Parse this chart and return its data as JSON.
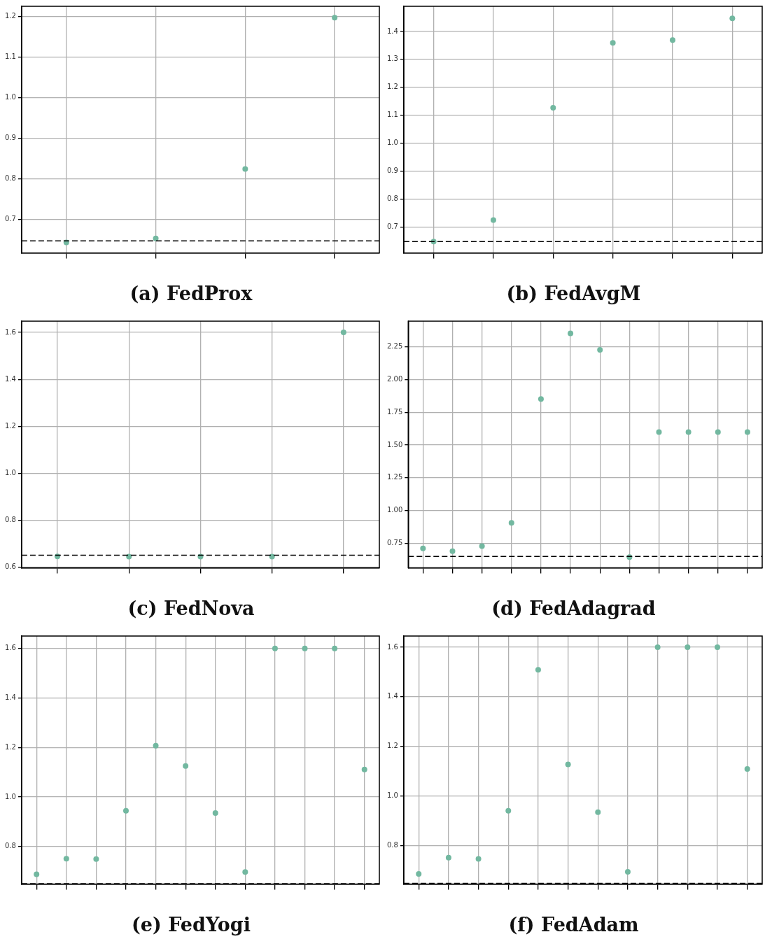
{
  "chart_data": [
    {
      "type": "scatter",
      "title": "(a) FedProx",
      "categories": [
        null,
        null,
        null,
        null
      ],
      "values": [
        0.643,
        0.653,
        0.824,
        1.197
      ],
      "color": "#72b8a0",
      "marker": "circle",
      "ylim": [
        0.617,
        1.225
      ],
      "yticks": [
        {
          "value": 0.7,
          "label": "0.7"
        },
        {
          "value": 0.8,
          "label": "0.8"
        },
        {
          "value": 0.9,
          "label": "0.9"
        },
        {
          "value": 1.0,
          "label": "1.0"
        },
        {
          "value": 1.1,
          "label": "1.1"
        },
        {
          "value": 1.2,
          "label": "1.2"
        }
      ],
      "grid": true,
      "tick_labels": "y",
      "ref_lines": [
        {
          "axis": "y",
          "value": 0.647,
          "color": "#000000",
          "line_style": "dashed"
        }
      ]
    },
    {
      "type": "scatter",
      "title": "(b) FedAvgM",
      "categories": [
        null,
        null,
        null,
        null,
        null,
        null
      ],
      "values": [
        0.648,
        0.725,
        1.127,
        1.359,
        1.369,
        1.447
      ],
      "color": "#72b8a0",
      "marker": "circle",
      "ylim": [
        0.607,
        1.49
      ],
      "yticks": [
        {
          "value": 0.7,
          "label": "0.7"
        },
        {
          "value": 0.8,
          "label": "0.8"
        },
        {
          "value": 0.9,
          "label": "0.9"
        },
        {
          "value": 1.0,
          "label": "1.0"
        },
        {
          "value": 1.1,
          "label": "1.1"
        },
        {
          "value": 1.2,
          "label": "1.2"
        },
        {
          "value": 1.3,
          "label": "1.3"
        },
        {
          "value": 1.4,
          "label": "1.4"
        }
      ],
      "grid": true,
      "tick_labels": "y",
      "ref_lines": [
        {
          "axis": "y",
          "value": 0.648,
          "color": "#000000",
          "line_style": "dashed"
        }
      ]
    },
    {
      "type": "scatter",
      "title": "(c) FedNova",
      "categories": [
        null,
        null,
        null,
        null,
        null
      ],
      "values": [
        0.646,
        0.645,
        0.645,
        0.645,
        1.6
      ],
      "color": "#72b8a0",
      "marker": "circle",
      "ylim": [
        0.597,
        1.648
      ],
      "yticks": [
        {
          "value": 0.6,
          "label": "0.6"
        },
        {
          "value": 0.8,
          "label": "0.8"
        },
        {
          "value": 1.0,
          "label": "1.0"
        },
        {
          "value": 1.2,
          "label": "1.2"
        },
        {
          "value": 1.4,
          "label": "1.4"
        },
        {
          "value": 1.6,
          "label": "1.6"
        }
      ],
      "grid": true,
      "tick_labels": "y",
      "ref_lines": [
        {
          "axis": "y",
          "value": 0.651,
          "color": "#000000",
          "line_style": "dashed"
        }
      ]
    },
    {
      "type": "scatter",
      "title": "(d) FedAdagrad",
      "categories": [
        null,
        null,
        null,
        null,
        null,
        null,
        null,
        null,
        null,
        null,
        null,
        null
      ],
      "values": [
        0.71,
        0.689,
        0.727,
        0.905,
        1.851,
        2.353,
        2.227,
        0.643,
        1.598,
        1.598,
        1.598,
        1.598
      ],
      "color": "#72b8a0",
      "marker": "circle",
      "ylim": [
        0.561,
        2.446
      ],
      "yticks": [
        {
          "value": 0.75,
          "label": "0.75"
        },
        {
          "value": 1.0,
          "label": "1.00"
        },
        {
          "value": 1.25,
          "label": "1.25"
        },
        {
          "value": 1.5,
          "label": "1.50"
        },
        {
          "value": 1.75,
          "label": "1.75"
        },
        {
          "value": 2.0,
          "label": "2.00"
        },
        {
          "value": 2.25,
          "label": "2.25"
        }
      ],
      "grid": true,
      "tick_labels": "y",
      "ref_lines": [
        {
          "axis": "y",
          "value": 0.649,
          "color": "#000000",
          "line_style": "dashed"
        }
      ]
    },
    {
      "type": "scatter",
      "title": "(e) FedYogi",
      "categories": [
        null,
        null,
        null,
        null,
        null,
        null,
        null,
        null,
        null,
        null,
        null,
        null
      ],
      "values": [
        0.688,
        0.751,
        0.749,
        0.944,
        1.207,
        1.125,
        0.935,
        0.697,
        1.6,
        1.6,
        1.6,
        1.111
      ],
      "color": "#72b8a0",
      "marker": "circle",
      "ylim": [
        0.648,
        1.65
      ],
      "yticks": [
        {
          "value": 0.8,
          "label": "0.8"
        },
        {
          "value": 1.0,
          "label": "1.0"
        },
        {
          "value": 1.2,
          "label": "1.2"
        },
        {
          "value": 1.4,
          "label": "1.4"
        },
        {
          "value": 1.6,
          "label": "1.6"
        }
      ],
      "grid": true,
      "tick_labels": "y",
      "ref_lines": [
        {
          "axis": "y",
          "value": 0.65,
          "color": "#000000",
          "line_style": "dashed"
        }
      ]
    },
    {
      "type": "scatter",
      "title": "(f) FedAdam",
      "categories": [
        null,
        null,
        null,
        null,
        null,
        null,
        null,
        null,
        null,
        null,
        null,
        null
      ],
      "values": [
        0.685,
        0.751,
        0.746,
        0.94,
        1.509,
        1.127,
        0.934,
        0.694,
        1.6,
        1.6,
        1.6,
        1.109
      ],
      "color": "#72b8a0",
      "marker": "circle",
      "ylim": [
        0.644,
        1.645
      ],
      "yticks": [
        {
          "value": 0.8,
          "label": "0.8"
        },
        {
          "value": 1.0,
          "label": "1.0"
        },
        {
          "value": 1.2,
          "label": "1.2"
        },
        {
          "value": 1.4,
          "label": "1.4"
        },
        {
          "value": 1.6,
          "label": "1.6"
        }
      ],
      "grid": true,
      "tick_labels": "y",
      "ref_lines": [
        {
          "axis": "y",
          "value": 0.647,
          "color": "#000000",
          "line_style": "dashed"
        }
      ]
    }
  ]
}
